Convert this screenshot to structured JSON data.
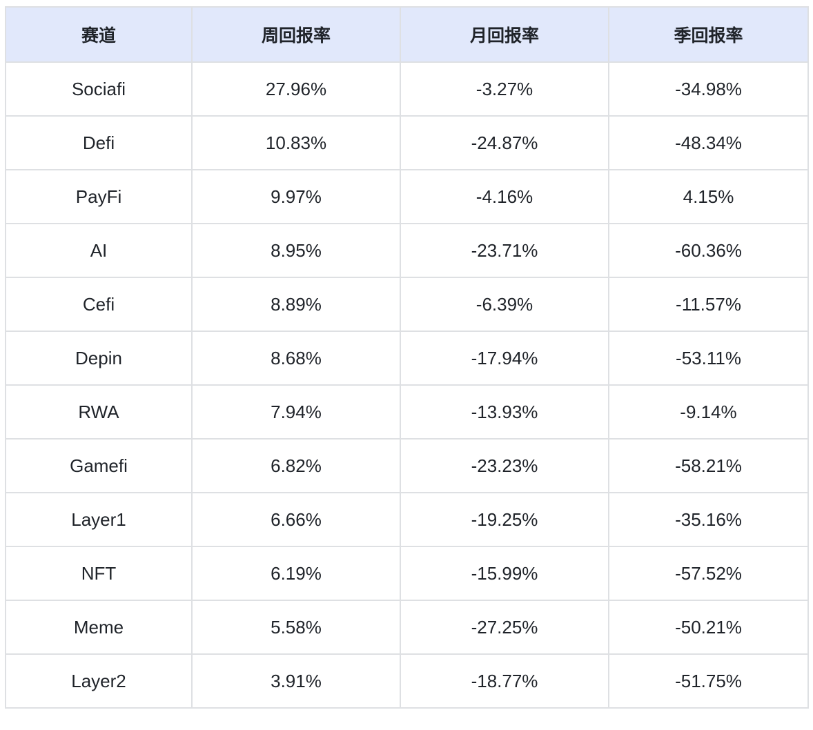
{
  "headers": [
    "赛道",
    "周回报率",
    "月回报率",
    "季回报率"
  ],
  "rows": [
    [
      "Sociafi",
      "27.96%",
      "-3.27%",
      "-34.98%"
    ],
    [
      "Defi",
      "10.83%",
      "-24.87%",
      "-48.34%"
    ],
    [
      "PayFi",
      "9.97%",
      "-4.16%",
      "4.15%"
    ],
    [
      "AI",
      "8.95%",
      "-23.71%",
      "-60.36%"
    ],
    [
      "Cefi",
      "8.89%",
      "-6.39%",
      "-11.57%"
    ],
    [
      "Depin",
      "8.68%",
      "-17.94%",
      "-53.11%"
    ],
    [
      "RWA",
      "7.94%",
      "-13.93%",
      "-9.14%"
    ],
    [
      "Gamefi",
      "6.82%",
      "-23.23%",
      "-58.21%"
    ],
    [
      "Layer1",
      "6.66%",
      "-19.25%",
      "-35.16%"
    ],
    [
      "NFT",
      "6.19%",
      "-15.99%",
      "-57.52%"
    ],
    [
      "Meme",
      "5.58%",
      "-27.25%",
      "-50.21%"
    ],
    [
      "Layer2",
      "3.91%",
      "-18.77%",
      "-51.75%"
    ]
  ],
  "colors": {
    "header_bg": "#e1e8fb",
    "border": "#dee0e3",
    "text": "#1f2329"
  }
}
